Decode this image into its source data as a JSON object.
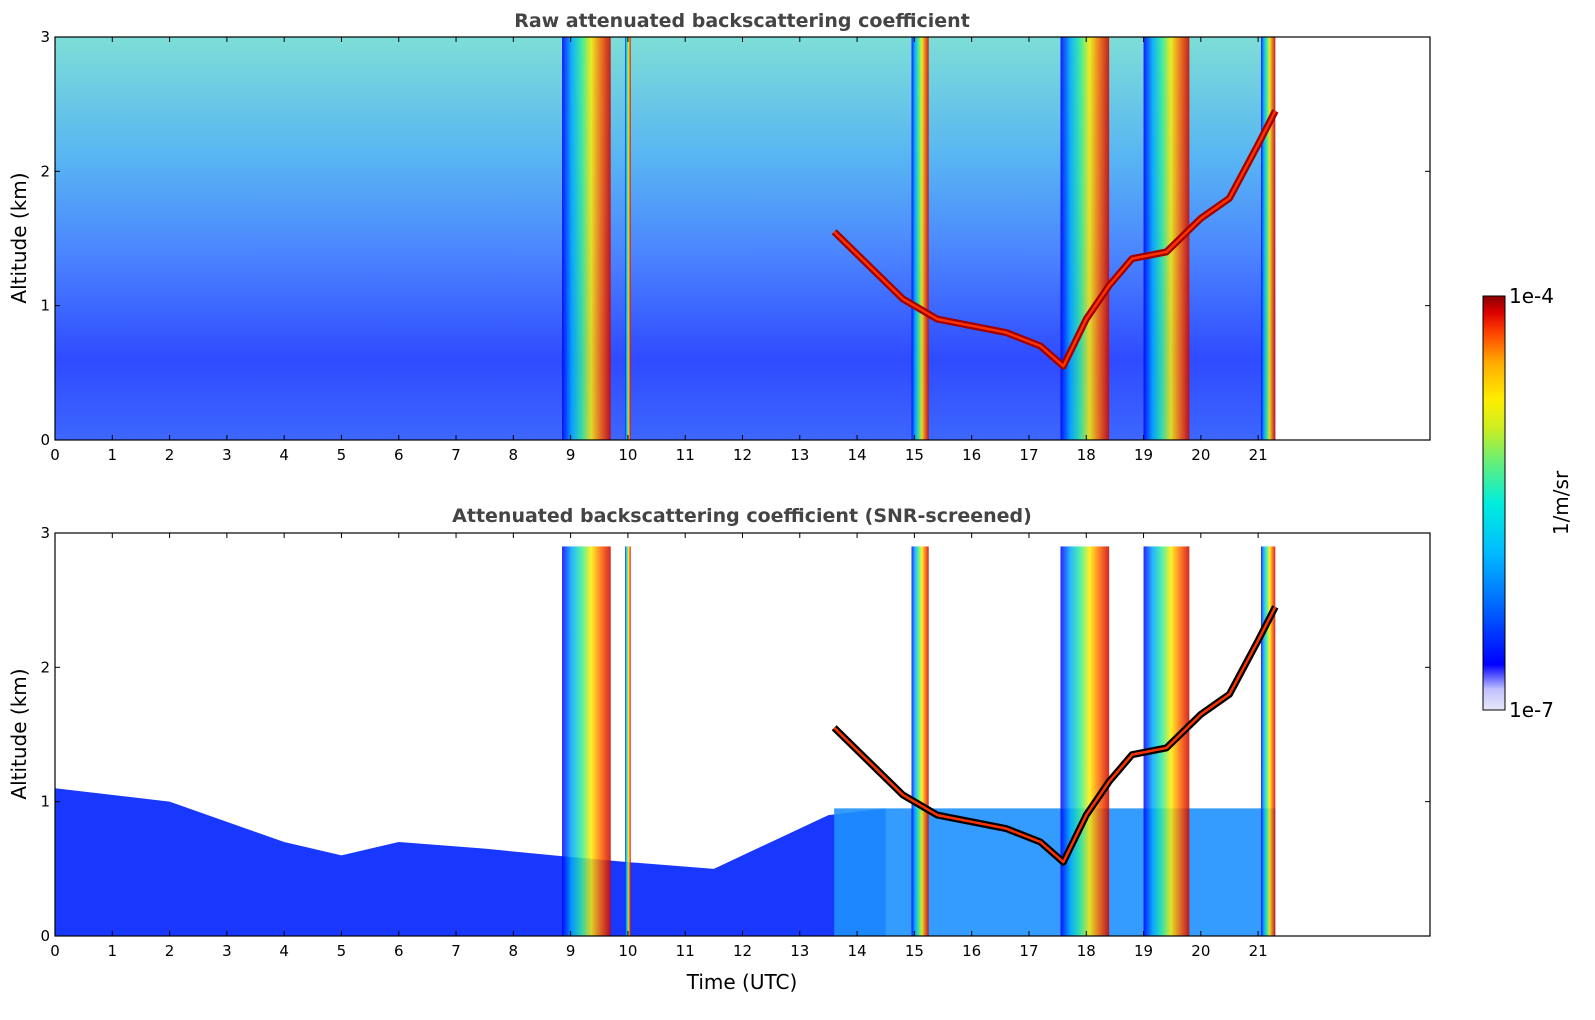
{
  "chart_data": [
    {
      "type": "heatmap",
      "title": "Raw attenuated backscattering coefficient",
      "xlabel": "",
      "ylabel": "Altitude (km)",
      "xlim": [
        0,
        24
      ],
      "ylim": [
        0,
        3
      ],
      "x_ticks": [
        "0",
        "1",
        "2",
        "3",
        "4",
        "5",
        "6",
        "7",
        "8",
        "9",
        "10",
        "11",
        "12",
        "13",
        "14",
        "15",
        "16",
        "17",
        "18",
        "19",
        "20",
        "21"
      ],
      "y_ticks": [
        "0",
        "1",
        "2",
        "3"
      ],
      "data_end_hour": 21.3,
      "cloud_layer": {
        "time": [
          13.6,
          14.2,
          14.8,
          15.4,
          16.0,
          16.6,
          17.2,
          17.6,
          18.0,
          18.4,
          18.8,
          19.4,
          20.0,
          20.5,
          21.0,
          21.3
        ],
        "altitude_km": [
          1.55,
          1.3,
          1.05,
          0.9,
          0.85,
          0.8,
          0.7,
          0.55,
          0.9,
          1.15,
          1.35,
          1.4,
          1.65,
          1.8,
          2.2,
          2.45
        ]
      },
      "precip_bands": [
        [
          8.85,
          9.7
        ],
        [
          9.95,
          10.05
        ],
        [
          14.95,
          15.25
        ],
        [
          17.55,
          18.4
        ],
        [
          19.0,
          19.8
        ],
        [
          21.05,
          21.3
        ]
      ]
    },
    {
      "type": "heatmap",
      "title": "Attenuated backscattering coefficient (SNR-screened)",
      "xlabel": "Time (UTC)",
      "ylabel": "Altitude (km)",
      "xlim": [
        0,
        24
      ],
      "ylim": [
        0,
        3
      ],
      "x_ticks": [
        "0",
        "1",
        "2",
        "3",
        "4",
        "5",
        "6",
        "7",
        "8",
        "9",
        "10",
        "11",
        "12",
        "13",
        "14",
        "15",
        "16",
        "17",
        "18",
        "19",
        "20",
        "21"
      ],
      "y_ticks": [
        "0",
        "1",
        "2",
        "3"
      ],
      "data_end_hour": 21.3,
      "boundary_layer_top": {
        "time": [
          0,
          2,
          4,
          5,
          6,
          7.5,
          8.7,
          10.0,
          11.5,
          12.5,
          13.5,
          14.5
        ],
        "altitude_km": [
          1.1,
          1.0,
          0.7,
          0.6,
          0.7,
          0.65,
          0.6,
          0.55,
          0.5,
          0.7,
          0.9,
          0.95
        ]
      }
    }
  ],
  "colorbar": {
    "label": "1/m/sr",
    "max_label": "1e-4",
    "min_label": "1e-7",
    "colors": [
      "#e8e8f8",
      "#c8c8ff",
      "#0000ff",
      "#0066ff",
      "#00aaff",
      "#00e5ee",
      "#55ee88",
      "#ccee22",
      "#ffee00",
      "#ffaa00",
      "#ff5500",
      "#e00000",
      "#8a0000"
    ]
  }
}
